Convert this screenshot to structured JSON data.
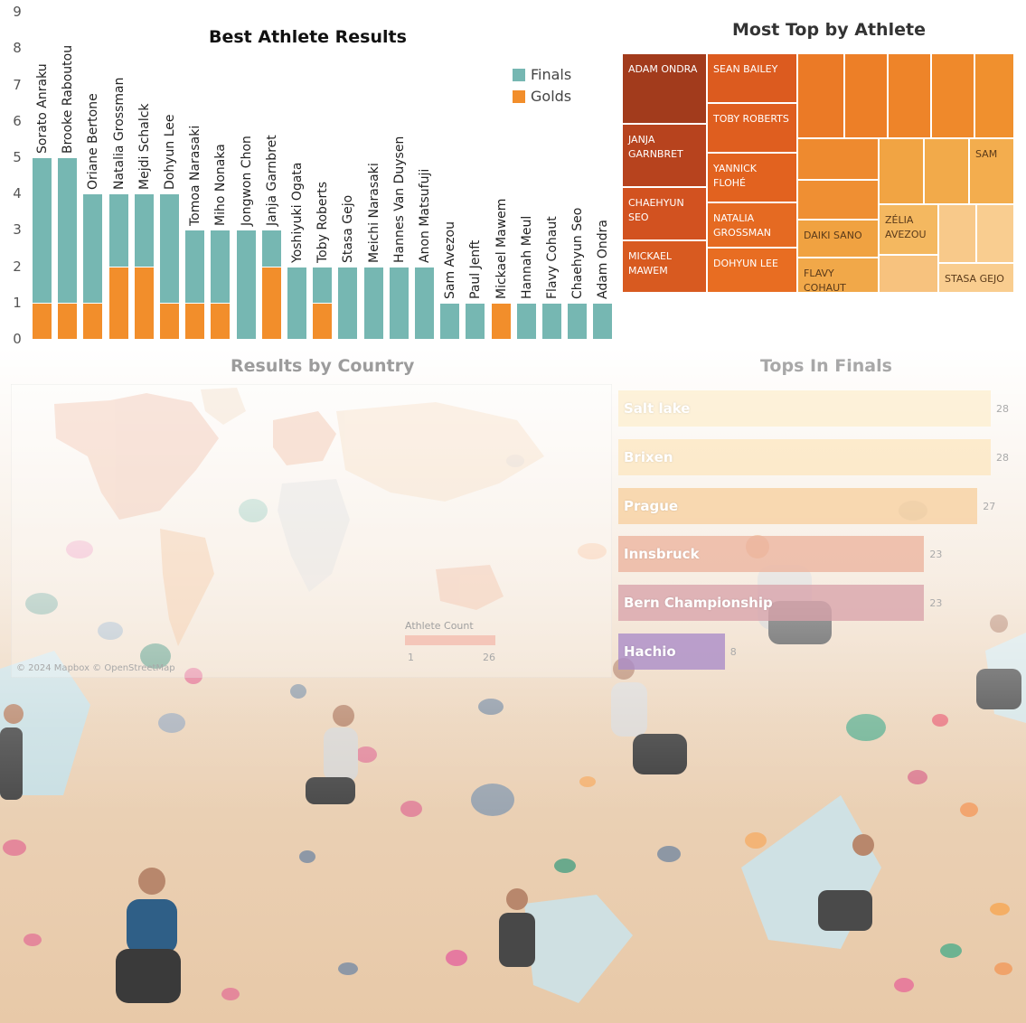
{
  "titles": {
    "best": "Best Athlete Results",
    "most": "Most Top by Athlete",
    "country": "Results by Country",
    "tops": "Tops In Finals"
  },
  "chart_data": [
    {
      "type": "bar",
      "title": "Best Athlete Results",
      "stacked": true,
      "ylim": [
        0,
        9
      ],
      "yticks": [
        0,
        1,
        2,
        3,
        4,
        5,
        6,
        7,
        8,
        9
      ],
      "legend": {
        "position": "top-right",
        "entries": [
          "Finals",
          "Golds"
        ]
      },
      "categories": [
        "Sorato Anraku",
        "Brooke Raboutou",
        "Oriane Bertone",
        "Natalia Grossman",
        "Mejdi Schalck",
        "Dohyun Lee",
        "Tomoa Narasaki",
        "Miho Nonaka",
        "Jongwon Chon",
        "Janja Garnbret",
        "Yoshiyuki Ogata",
        "Toby Roberts",
        "Stasa Gejo",
        "Meichi Narasaki",
        "Hannes Van Duysen",
        "Anon Matsufuji",
        "Sam Avezou",
        "Paul Jenft",
        "Mickael Mawem",
        "Hannah Meul",
        "Flavy Cohaut",
        "Chaehyun Seo",
        "Adam Ondra"
      ],
      "series": [
        {
          "name": "Golds",
          "color": "#f28e2b",
          "values": [
            1,
            1,
            1,
            2,
            2,
            1,
            1,
            1,
            0,
            2,
            0,
            1,
            0,
            0,
            0,
            0,
            0,
            0,
            1,
            0,
            0,
            0,
            0
          ]
        },
        {
          "name": "Finals",
          "color": "#76b7b2",
          "values": [
            4,
            4,
            3,
            2,
            2,
            3,
            2,
            2,
            3,
            1,
            2,
            1,
            2,
            2,
            2,
            2,
            1,
            1,
            0,
            1,
            1,
            1,
            1
          ]
        }
      ]
    },
    {
      "type": "treemap",
      "title": "Most Top by Athlete",
      "labels": [
        "ADAM ONDRA",
        "SEAN BAILEY",
        "JANJA GARNBRET",
        "TOBY ROBERTS",
        "YANNICK FLOHÉ",
        "CHAEHYUN SEO",
        "NATALIA GROSSMAN",
        "MICKAEL MAWEM",
        "DOHYUN LEE",
        "DAIKI SANO",
        "ZÉLIA AVEZOU",
        "SAM",
        "FLAVY COHAUT",
        "STASA GEJO"
      ]
    },
    {
      "type": "map",
      "title": "Results by Country",
      "legend_title": "Athlete Count",
      "legend_min": "1",
      "legend_max": "26",
      "attribution": "© 2024 Mapbox © OpenStreetMap"
    },
    {
      "type": "bar",
      "orientation": "horizontal",
      "title": "Tops In Finals",
      "categories": [
        "Salt lake",
        "Brixen",
        "Prague",
        "Innsbruck",
        "Bern Championship",
        "Hachio"
      ],
      "values": [
        28,
        28,
        27,
        23,
        23,
        8
      ],
      "colors": [
        "#fdeecf",
        "#fde7c0",
        "#f7cf9f",
        "#ecb49e",
        "#d9a3ab",
        "#a98bc8"
      ]
    }
  ]
}
